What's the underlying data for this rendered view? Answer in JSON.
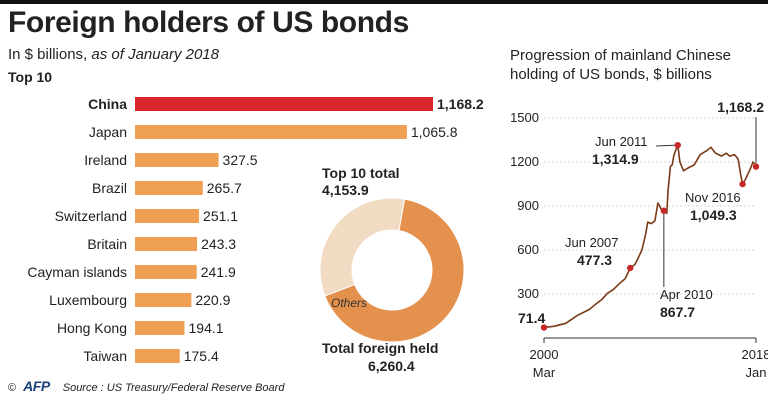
{
  "title": "Foreign holders of US bonds",
  "subtitle_prefix": "In $ billions, ",
  "subtitle_italic": "as of January 2018",
  "top10_label": "Top 10",
  "colors": {
    "highlight": "#d7252a",
    "bar": "#f0a055",
    "donut_main": "#e4914e",
    "donut_others": "#f1dcc3",
    "line": "#7a3a16",
    "dot": "#c62828"
  },
  "top10_total_label": "Top 10 total",
  "top10_total_value": "4,153.9",
  "others_label": "Others",
  "total_label": "Total foreign held",
  "total_value": "6,260.4",
  "right_title_line1": "Progression of mainland Chinese",
  "right_title_line2": "holding of US bonds, $ billions",
  "footer_copyright": "©",
  "footer_logo": "AFP",
  "footer_source": "Source : US Treasury/Federal Reserve Board",
  "chart_data": [
    {
      "type": "bar",
      "title": "Top 10",
      "categories": [
        "China",
        "Japan",
        "Ireland",
        "Brazil",
        "Switzerland",
        "Britain",
        "Cayman islands",
        "Luxembourg",
        "Hong Kong",
        "Taiwan"
      ],
      "values": [
        1168.2,
        1065.8,
        327.5,
        265.7,
        251.1,
        243.3,
        241.9,
        220.9,
        194.1,
        175.4
      ],
      "value_labels": [
        "1,168.2",
        "1,065.8",
        "327.5",
        "265.7",
        "251.1",
        "243.3",
        "241.9",
        "220.9",
        "194.1",
        "175.4"
      ],
      "highlight": "China"
    },
    {
      "type": "pie",
      "donut": true,
      "slices": [
        {
          "name": "Top 10 total",
          "value": 4153.9
        },
        {
          "name": "Others",
          "value": 2106.5
        }
      ],
      "total": 6260.4
    },
    {
      "type": "line",
      "title": "Progression of mainland Chinese holding of US bonds, $ billions",
      "ylim": [
        0,
        1500
      ],
      "yticks": [
        300,
        600,
        900,
        1200,
        1500
      ],
      "x_range": [
        "2000 Mar",
        "2018 Jan"
      ],
      "x_ticks": [
        {
          "year": "2000",
          "month": "Mar",
          "t": 2000.17
        },
        {
          "year": "2018",
          "month": "Jan",
          "t": 2018.0
        }
      ],
      "grid": true,
      "series": [
        {
          "points": [
            [
              2000.17,
              71.4
            ],
            [
              2001.0,
              80
            ],
            [
              2002.0,
              100
            ],
            [
              2003.0,
              155
            ],
            [
              2004.0,
              195
            ],
            [
              2004.5,
              230
            ],
            [
              2005.0,
              260
            ],
            [
              2005.5,
              305
            ],
            [
              2006.0,
              330
            ],
            [
              2006.5,
              370
            ],
            [
              2007.0,
              405
            ],
            [
              2007.42,
              477.3
            ],
            [
              2007.8,
              500
            ],
            [
              2008.0,
              530
            ],
            [
              2008.4,
              600
            ],
            [
              2008.7,
              700
            ],
            [
              2008.9,
              790
            ],
            [
              2009.2,
              780
            ],
            [
              2009.5,
              800
            ],
            [
              2009.75,
              920
            ],
            [
              2009.9,
              900
            ],
            [
              2010.0,
              880
            ],
            [
              2010.25,
              867.7
            ],
            [
              2010.5,
              850
            ],
            [
              2010.6,
              1000
            ],
            [
              2010.8,
              1170
            ],
            [
              2010.95,
              1180
            ],
            [
              2011.1,
              1250
            ],
            [
              2011.42,
              1314.9
            ],
            [
              2011.6,
              1200
            ],
            [
              2011.9,
              1140
            ],
            [
              2012.3,
              1160
            ],
            [
              2012.8,
              1180
            ],
            [
              2013.3,
              1250
            ],
            [
              2013.9,
              1280
            ],
            [
              2014.2,
              1300
            ],
            [
              2014.6,
              1260
            ],
            [
              2015.1,
              1240
            ],
            [
              2015.5,
              1260
            ],
            [
              2015.8,
              1240
            ],
            [
              2016.2,
              1250
            ],
            [
              2016.5,
              1220
            ],
            [
              2016.7,
              1120
            ],
            [
              2016.87,
              1049.3
            ],
            [
              2017.1,
              1080
            ],
            [
              2017.5,
              1150
            ],
            [
              2017.75,
              1200
            ],
            [
              2017.85,
              1190
            ],
            [
              2018.0,
              1168.2
            ]
          ]
        }
      ],
      "annotations": [
        {
          "label": "",
          "value_label": "71.4",
          "t": 2000.17,
          "v": 71.4
        },
        {
          "label": "Jun 2007",
          "value_label": "477.3",
          "t": 2007.42,
          "v": 477.3
        },
        {
          "label": "Apr 2010",
          "value_label": "867.7",
          "t": 2010.25,
          "v": 867.7
        },
        {
          "label": "Jun 2011",
          "value_label": "1,314.9",
          "t": 2011.42,
          "v": 1314.9
        },
        {
          "label": "Nov 2016",
          "value_label": "1,049.3",
          "t": 2016.87,
          "v": 1049.3
        },
        {
          "label": "",
          "value_label": "1,168.2",
          "t": 2018.0,
          "v": 1168.2
        }
      ]
    }
  ]
}
